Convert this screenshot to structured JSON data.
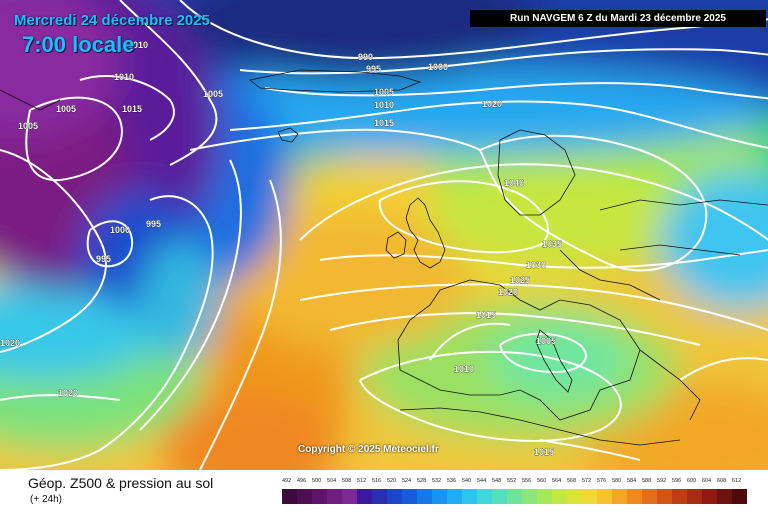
{
  "header": {
    "valid_date": "Mercredi 24 décembre 2025",
    "valid_time": "7:00 locale",
    "run_info": "Run NAVGEM 6 Z du Mardi 23 décembre 2025"
  },
  "copyright": "Copyright © 2025 Meteociel.fr",
  "footer": {
    "title": "Géop. Z500 & pression au sol",
    "subtitle": "(+ 24h)"
  },
  "legend": {
    "values": [
      "492",
      "496",
      "500",
      "504",
      "508",
      "512",
      "516",
      "520",
      "524",
      "528",
      "532",
      "536",
      "540",
      "544",
      "548",
      "552",
      "556",
      "560",
      "564",
      "568",
      "572",
      "576",
      "580",
      "584",
      "588",
      "592",
      "596",
      "600",
      "604",
      "608",
      "612"
    ],
    "colors": [
      "#3c0a3c",
      "#4e0e52",
      "#5e1469",
      "#701d80",
      "#7e2a96",
      "#3a1a9a",
      "#2830b0",
      "#1b46c7",
      "#165ed9",
      "#1678e6",
      "#1a92ef",
      "#22acf2",
      "#2ec4ee",
      "#40d6dc",
      "#55e0bd",
      "#6ee49a",
      "#8ae67a",
      "#a6e85c",
      "#c2e846",
      "#dce23a",
      "#f0d836",
      "#f6c22e",
      "#f4a626",
      "#ec8a20",
      "#e06e1c",
      "#d05418",
      "#bc3e16",
      "#a62c14",
      "#8c1c12",
      "#6e1210",
      "#4e0a0a"
    ]
  },
  "isobar_labels": [
    "990",
    "995",
    "1000",
    "1005",
    "1010",
    "1015",
    "1020",
    "1025",
    "1030",
    "1035",
    "1040"
  ]
}
